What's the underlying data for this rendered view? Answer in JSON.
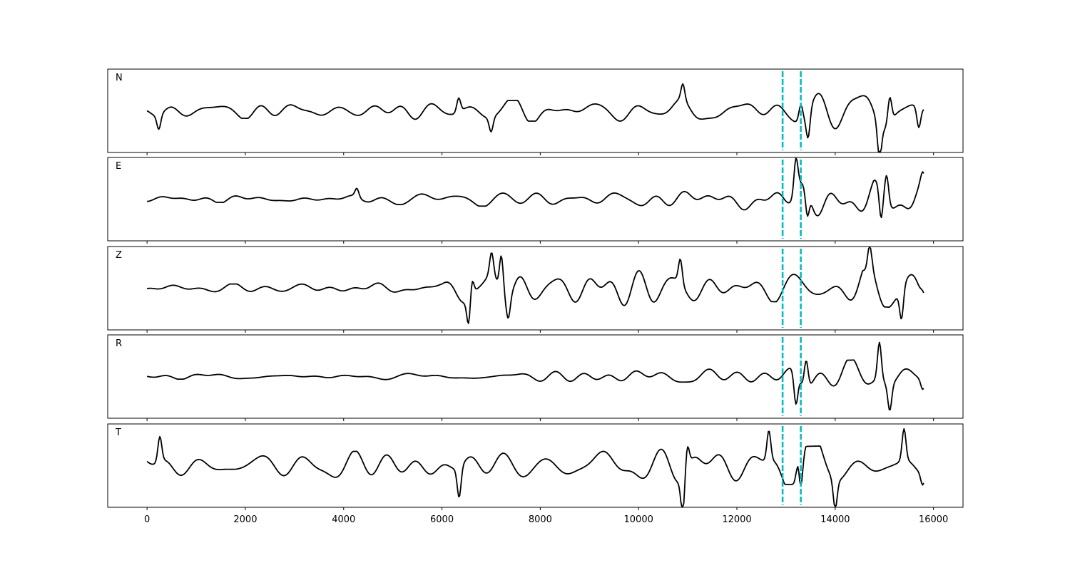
{
  "chart_data": {
    "type": "line",
    "xlim": [
      -800,
      16600
    ],
    "x_ticks": [
      0,
      2000,
      4000,
      6000,
      8000,
      10000,
      12000,
      14000,
      16000
    ],
    "x_tick_labels": [
      "0",
      "2000",
      "4000",
      "6000",
      "8000",
      "10000",
      "12000",
      "14000",
      "16000"
    ],
    "sample_count": 15800,
    "vertical_markers": [
      12930,
      13300
    ],
    "line_color": "#000000",
    "marker_color": "#00bfbf",
    "grid": false,
    "panels": [
      {
        "label": "N",
        "ylim": [
          -1,
          1
        ],
        "envelope": [
          [
            0,
            0.16
          ],
          [
            4000,
            0.2
          ],
          [
            6000,
            0.24
          ],
          [
            10800,
            0.26
          ],
          [
            12000,
            0.34
          ],
          [
            13300,
            0.5
          ],
          [
            14500,
            0.62
          ],
          [
            15800,
            0.72
          ]
        ],
        "events": [
          [
            240,
            -0.34
          ],
          [
            6340,
            0.34
          ],
          [
            7000,
            -0.34
          ],
          [
            10900,
            0.38
          ],
          [
            13300,
            0.4
          ],
          [
            13450,
            -0.62
          ],
          [
            14900,
            -0.82
          ],
          [
            15110,
            0.62
          ],
          [
            15700,
            -0.5
          ]
        ]
      },
      {
        "label": "E",
        "ylim": [
          -1,
          1
        ],
        "envelope": [
          [
            0,
            0.07
          ],
          [
            4000,
            0.09
          ],
          [
            6000,
            0.16
          ],
          [
            10800,
            0.2
          ],
          [
            12000,
            0.24
          ],
          [
            13300,
            0.38
          ],
          [
            14500,
            0.44
          ],
          [
            15800,
            0.52
          ]
        ],
        "events": [
          [
            4270,
            0.2
          ],
          [
            13200,
            0.8
          ],
          [
            13430,
            -0.66
          ],
          [
            14930,
            -0.84
          ],
          [
            15050,
            0.6
          ],
          [
            15780,
            0.22
          ]
        ]
      },
      {
        "label": "Z",
        "ylim": [
          -1,
          1
        ],
        "envelope": [
          [
            0,
            0.1
          ],
          [
            2000,
            0.1
          ],
          [
            4000,
            0.13
          ],
          [
            6000,
            0.2
          ],
          [
            6600,
            0.6
          ],
          [
            7500,
            0.55
          ],
          [
            10800,
            0.38
          ],
          [
            12000,
            0.3
          ],
          [
            13300,
            0.34
          ],
          [
            15800,
            0.5
          ]
        ],
        "events": [
          [
            6550,
            -0.76
          ],
          [
            6600,
            0.52
          ],
          [
            7010,
            0.54
          ],
          [
            7210,
            0.9
          ],
          [
            7350,
            -0.46
          ],
          [
            10850,
            0.58
          ],
          [
            14700,
            0.6
          ],
          [
            15350,
            -0.72
          ],
          [
            15780,
            0.1
          ]
        ]
      },
      {
        "label": "R",
        "ylim": [
          -1,
          1
        ],
        "envelope": [
          [
            0,
            0.06
          ],
          [
            4000,
            0.07
          ],
          [
            6000,
            0.12
          ],
          [
            10800,
            0.16
          ],
          [
            12000,
            0.2
          ],
          [
            13300,
            0.36
          ],
          [
            14500,
            0.4
          ],
          [
            15800,
            0.46
          ]
        ],
        "events": [
          [
            13200,
            -0.74
          ],
          [
            13410,
            0.66
          ],
          [
            14900,
            0.9
          ],
          [
            15110,
            -0.62
          ],
          [
            15780,
            -0.24
          ]
        ]
      },
      {
        "label": "T",
        "ylim": [
          -1,
          1
        ],
        "envelope": [
          [
            0,
            0.32
          ],
          [
            4000,
            0.34
          ],
          [
            6000,
            0.36
          ],
          [
            10800,
            0.4
          ],
          [
            12000,
            0.42
          ],
          [
            13300,
            0.46
          ],
          [
            15800,
            0.52
          ]
        ],
        "events": [
          [
            260,
            0.6
          ],
          [
            6350,
            -0.72
          ],
          [
            10900,
            -0.88
          ],
          [
            10990,
            0.52
          ],
          [
            12650,
            0.72
          ],
          [
            13250,
            0.7
          ],
          [
            13290,
            -0.76
          ],
          [
            14000,
            -0.68
          ],
          [
            15400,
            0.76
          ],
          [
            15780,
            -0.3
          ]
        ]
      }
    ]
  }
}
